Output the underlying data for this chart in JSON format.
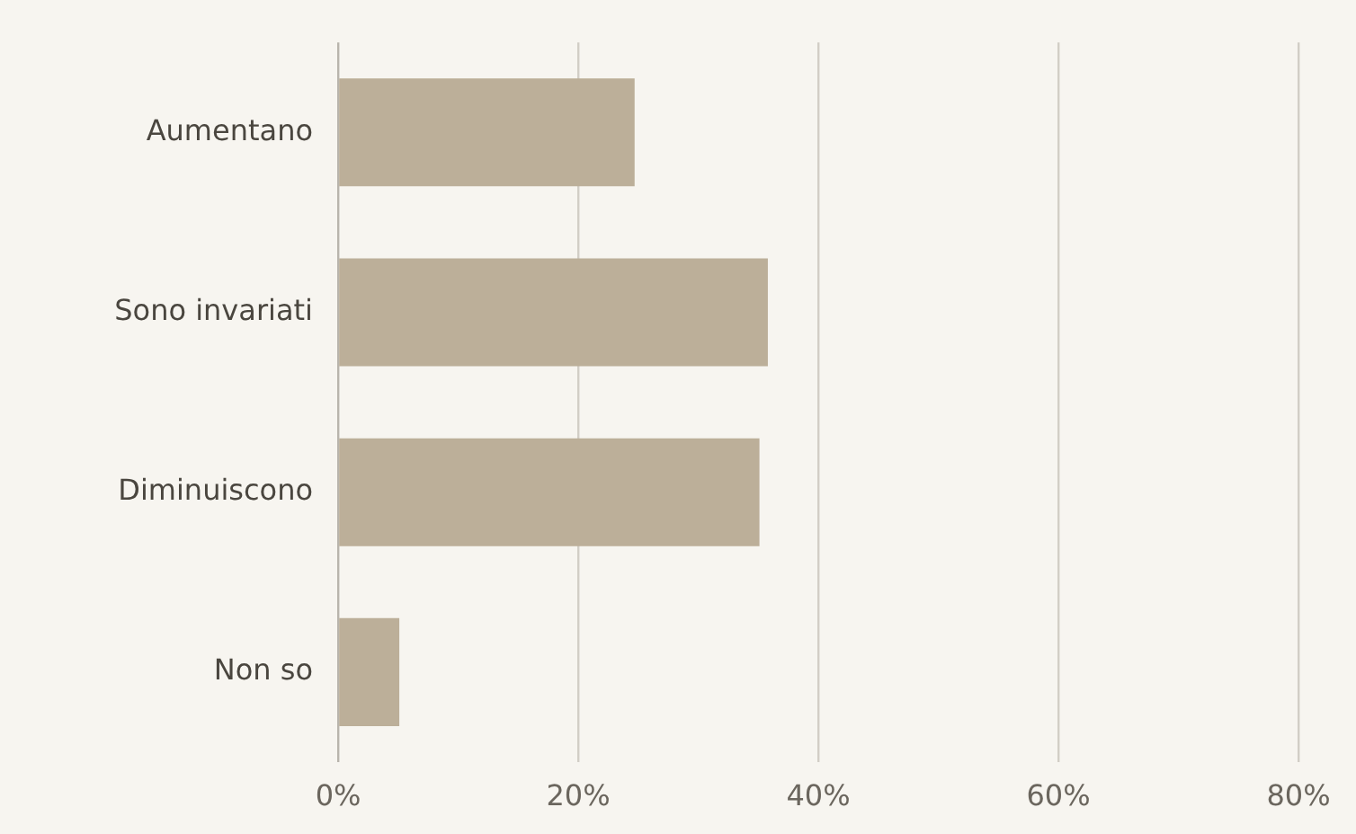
{
  "chart_data": {
    "type": "bar",
    "orientation": "horizontal",
    "categories": [
      "Aumentano",
      "Sono invariati",
      "Diminuiscono",
      "Non so"
    ],
    "values": [
      24.7,
      35.8,
      35.1,
      5.1
    ],
    "color": "#bcaf99",
    "xlim": [
      0,
      80
    ],
    "xticks": [
      {
        "value": 0,
        "label": "0%"
      },
      {
        "value": 20,
        "label": "20%"
      },
      {
        "value": 40,
        "label": "40%"
      },
      {
        "value": 60,
        "label": "60%"
      },
      {
        "value": 80,
        "label": "80%"
      }
    ],
    "grid": "x",
    "legend": false
  }
}
